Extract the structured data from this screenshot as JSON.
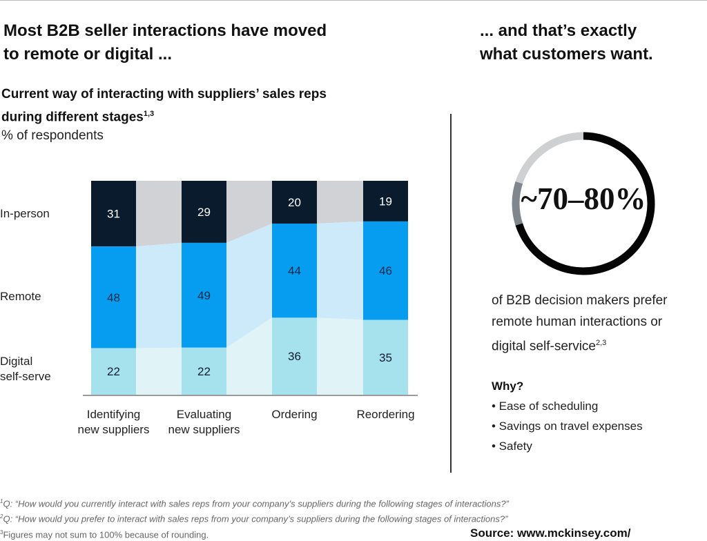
{
  "left_heading": "Most B2B seller interactions have moved to remote or digital ...",
  "left_heading_lines": [
    "Most B2B seller interactions have moved",
    "to remote or digital ..."
  ],
  "right_heading_lines": [
    "... and that’s exactly",
    "what customers want."
  ],
  "chart_data": {
    "type": "bar",
    "stacked": true,
    "title_lines": [
      "Current way of interacting with suppliers’ sales reps",
      "during different stages"
    ],
    "title_sup": "1,3",
    "ylabel": "% of respondents",
    "categories": [
      "Identifying new suppliers",
      "Evaluating new suppliers",
      "Ordering",
      "Reordering"
    ],
    "category_lines": [
      [
        "Identifying",
        "new suppliers"
      ],
      [
        "Evaluating",
        "new suppliers"
      ],
      [
        "Ordering"
      ],
      [
        "Reordering"
      ]
    ],
    "series": [
      {
        "name": "In-person",
        "values": [
          31,
          29,
          20,
          19
        ],
        "color": "#0b1b2e",
        "band_color": "#d0d2d5",
        "label_color": "#ffffff"
      },
      {
        "name": "Remote",
        "values": [
          48,
          49,
          44,
          46
        ],
        "color": "#069cf0",
        "band_color": "#cdeafb",
        "label_color": "#0b2a4a"
      },
      {
        "name": "Digital self-serve",
        "values": [
          22,
          22,
          36,
          35
        ],
        "color": "#a6e1ee",
        "band_color": "#e0f4f8",
        "label_color": "#0b1b2e"
      }
    ],
    "row_label_lines": [
      [
        "In-person"
      ],
      [
        "Remote"
      ],
      [
        "Digital",
        "self-serve"
      ]
    ]
  },
  "donut": {
    "value_text": "~70–80%",
    "range": [
      70,
      80
    ],
    "colors": {
      "main": "#050505",
      "range": "#7f868d",
      "rest": "#cfd0d1"
    }
  },
  "description_lines": [
    "of B2B decision makers prefer",
    "remote human interactions or",
    "digital self-service"
  ],
  "description_sup": "2,3",
  "why": {
    "title": "Why?",
    "reasons": [
      "• Ease of scheduling",
      "• Savings on travel expenses",
      "• Safety"
    ]
  },
  "footnotes": [
    {
      "num": "1",
      "text": "Q: “How would you currently interact with sales reps from your company’s suppliers during the following stages of interactions?”"
    },
    {
      "num": "2",
      "text": "Q: “How would you prefer to interact with sales reps from your company’s suppliers during the following stages of interactions?”"
    },
    {
      "num": "3",
      "text": "Figures may not sum to 100% because of rounding."
    }
  ],
  "source": "Source: www.mckinsey.com/"
}
